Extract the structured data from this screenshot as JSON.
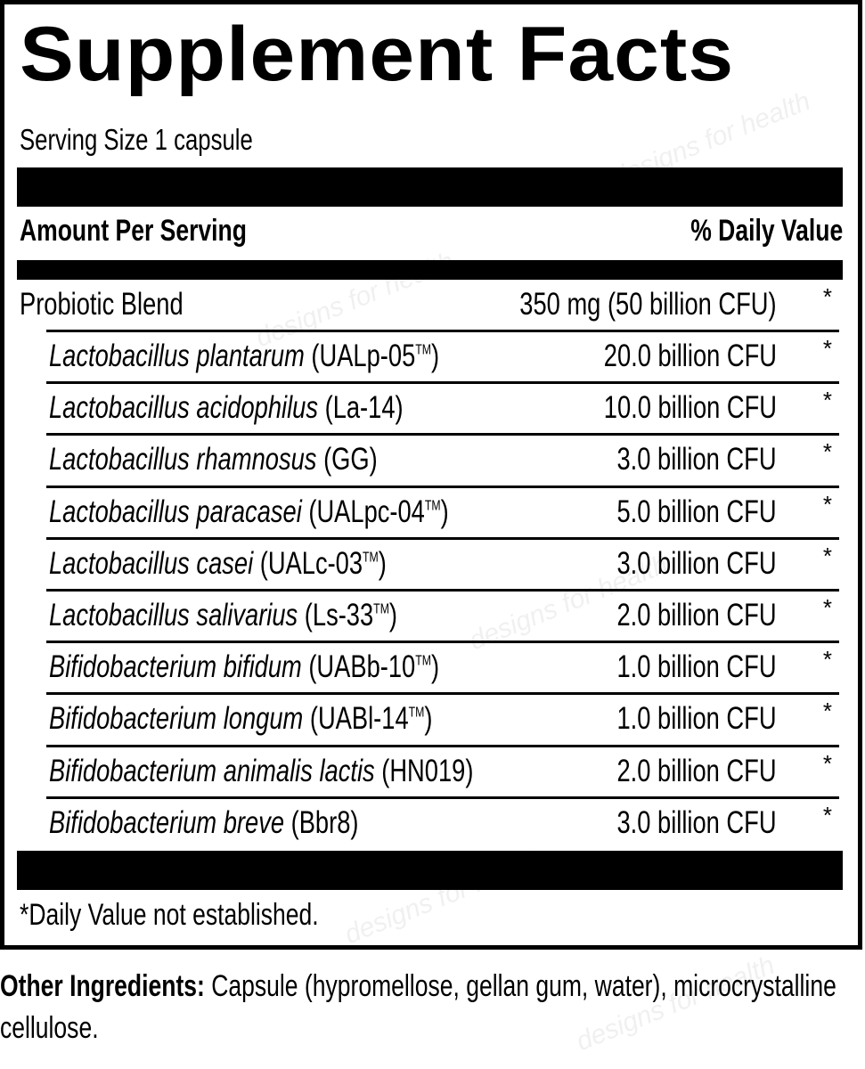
{
  "label": {
    "title": "Supplement Facts",
    "serving_size": "Serving Size 1 capsule",
    "header_left": "Amount Per Serving",
    "header_right": "% Daily Value",
    "blend": {
      "name": "Probiotic Blend",
      "amount": "350 mg (50 billion CFU)",
      "dv": "*"
    },
    "ingredients": [
      {
        "species": "Lactobacillus plantarum",
        "strain": "(UALp-05",
        "tm": "TM",
        "strain_end": ")",
        "amount": "20.0 billion CFU",
        "dv": "*"
      },
      {
        "species": "Lactobacillus acidophilus",
        "strain": "(La-14)",
        "tm": "",
        "strain_end": "",
        "amount": "10.0 billion CFU",
        "dv": "*"
      },
      {
        "species": "Lactobacillus rhamnosus",
        "strain": "(GG)",
        "tm": "",
        "strain_end": "",
        "amount": "3.0 billion CFU",
        "dv": "*"
      },
      {
        "species": "Lactobacillus paracasei",
        "strain": "(UALpc-04",
        "tm": "TM",
        "strain_end": ")",
        "amount": "5.0 billion CFU",
        "dv": "*"
      },
      {
        "species": "Lactobacillus casei",
        "strain": "(UALc-03",
        "tm": "TM",
        "strain_end": ")",
        "amount": "3.0 billion CFU",
        "dv": "*"
      },
      {
        "species": "Lactobacillus salivarius",
        "strain": "(Ls-33",
        "tm": "TM",
        "strain_end": ")",
        "amount": "2.0 billion CFU",
        "dv": "*"
      },
      {
        "species": "Bifidobacterium bifidum",
        "strain": "(UABb-10",
        "tm": "TM",
        "strain_end": ")",
        "amount": "1.0 billion CFU",
        "dv": "*"
      },
      {
        "species": "Bifidobacterium longum",
        "strain": "(UABl-14",
        "tm": "TM",
        "strain_end": ")",
        "amount": "1.0 billion CFU",
        "dv": "*"
      },
      {
        "species": "Bifidobacterium animalis lactis",
        "strain": "(HN019)",
        "tm": "",
        "strain_end": "",
        "amount": "2.0 billion CFU",
        "dv": "*"
      },
      {
        "species": "Bifidobacterium breve",
        "strain": "(Bbr8)",
        "tm": "",
        "strain_end": "",
        "amount": "3.0 billion CFU",
        "dv": "*"
      }
    ],
    "footnote": "*Daily Value not established."
  },
  "other_ingredients": {
    "heading": "Other Ingredients:",
    "text": " Capsule (hypromellose, gellan gum, water), microcrystalline cellulose."
  },
  "watermark": "designs for health"
}
